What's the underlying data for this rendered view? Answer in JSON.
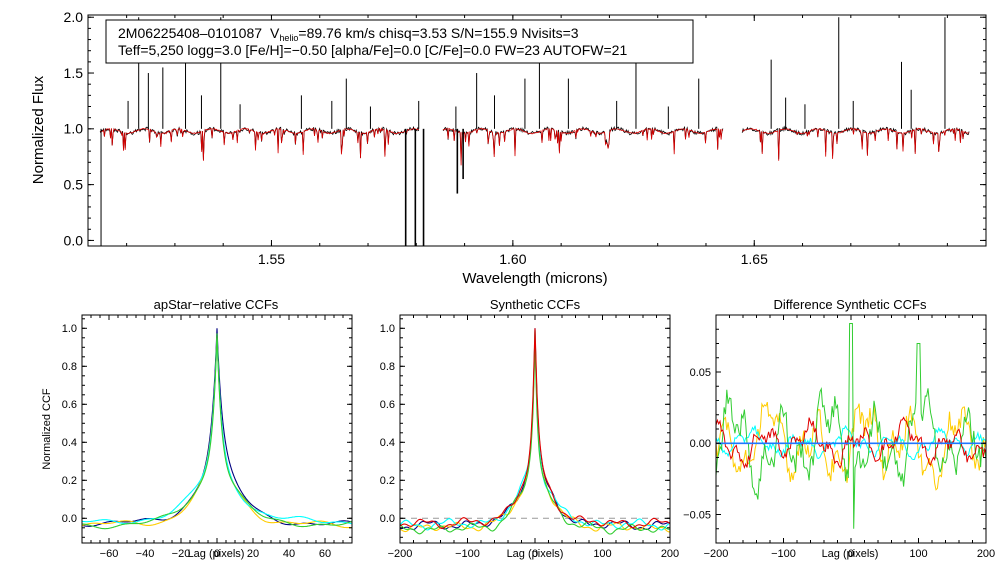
{
  "header": {
    "line1_id": "2M06225408–0101087",
    "line1_v": "V",
    "line1_vsub": "helio",
    "line1_rest": "=89.76 km/s  chisq=3.53  S/N=155.9  Nvisits=3",
    "line2": "Teff=5,250 logg=3.0 [Fe/H]=−0.50 [alpha/Fe]=0.0 [C/Fe]=0.0 FW=23 AUTOFW=21"
  },
  "chart_data": [
    {
      "type": "line",
      "name": "spectrum",
      "xlabel": "Wavelength (microns)",
      "ylabel": "Normalized Flux",
      "xlim": [
        1.512,
        1.698
      ],
      "ylim": [
        -0.05,
        2.02
      ],
      "xticks": [
        1.55,
        1.6,
        1.65
      ],
      "xtick_labels": [
        "1.55",
        "1.60",
        "1.65"
      ],
      "yticks": [
        0.0,
        0.5,
        1.0,
        1.5,
        2.0
      ],
      "ytick_labels": [
        "0.0",
        "0.5",
        "1.0",
        "1.5",
        "2.0"
      ],
      "chips": [
        [
          1.5145,
          1.5805
        ],
        [
          1.5855,
          1.6435
        ],
        [
          1.6475,
          1.6945
        ]
      ],
      "colors": {
        "observed": "#000000",
        "model": "#d40000"
      },
      "emission_lines": [
        [
          1.5147,
          -0.05
        ],
        [
          1.5203,
          1.25
        ],
        [
          1.5225,
          2.0
        ],
        [
          1.5245,
          1.5
        ],
        [
          1.5275,
          1.55
        ],
        [
          1.5322,
          1.65
        ],
        [
          1.5355,
          1.3
        ],
        [
          1.5395,
          2.0
        ],
        [
          1.5435,
          1.22
        ],
        [
          1.5562,
          1.3
        ],
        [
          1.5625,
          1.25
        ],
        [
          1.5655,
          1.45
        ],
        [
          1.5705,
          1.2
        ],
        [
          1.5805,
          1.25
        ],
        [
          1.5882,
          1.2
        ],
        [
          1.5925,
          1.5
        ],
        [
          1.5962,
          1.3
        ],
        [
          1.6025,
          1.45
        ],
        [
          1.6055,
          1.75
        ],
        [
          1.6115,
          1.45
        ],
        [
          1.6215,
          1.25
        ],
        [
          1.6255,
          1.65
        ],
        [
          1.6322,
          1.2
        ],
        [
          1.6385,
          1.45
        ],
        [
          1.6535,
          1.62
        ],
        [
          1.6565,
          1.28
        ],
        [
          1.6605,
          1.22
        ],
        [
          1.6675,
          2.0
        ],
        [
          1.6705,
          1.25
        ],
        [
          1.6805,
          1.6
        ],
        [
          1.6825,
          1.35
        ],
        [
          1.6895,
          2.0
        ]
      ],
      "absorption_lines": [
        [
          1.5778,
          -0.05
        ],
        [
          1.5798,
          -0.05
        ],
        [
          1.5815,
          -0.05
        ],
        [
          1.5885,
          0.42
        ],
        [
          1.5897,
          0.55
        ]
      ]
    },
    {
      "type": "line",
      "title": "apStar−relative CCFs",
      "xlabel": "Lag (pixels)",
      "ylabel": "Normalized CCF",
      "xlim": [
        -75,
        75
      ],
      "ylim": [
        -0.13,
        1.07
      ],
      "xticks": [
        -60,
        -40,
        -20,
        0,
        20,
        40,
        60
      ],
      "xtick_labels": [
        "−60",
        "−40",
        "−20",
        "0",
        "20",
        "40",
        "60"
      ],
      "yticks": [
        0.0,
        0.2,
        0.4,
        0.6,
        0.8,
        1.0
      ],
      "ytick_labels": [
        "0.0",
        "0.2",
        "0.4",
        "0.6",
        "0.8",
        "1.0"
      ],
      "peak": 0,
      "series": [
        {
          "color": "#000080",
          "height": 1.0,
          "width": 3.2,
          "tail": 0.0
        },
        {
          "color": "#ffcc00",
          "height": 0.96,
          "width": 2.8,
          "tail": -0.01
        },
        {
          "color": "#00ffff",
          "height": 0.95,
          "width": 2.7,
          "tail": 0.01
        },
        {
          "color": "#32cd32",
          "height": 0.99,
          "width": 2.6,
          "tail": -0.005
        }
      ]
    },
    {
      "type": "line",
      "title": "Synthetic CCFs",
      "xlabel": "Lag (pixels)",
      "ylabel": "",
      "xlim": [
        -200,
        200
      ],
      "ylim": [
        -0.13,
        1.07
      ],
      "xticks": [
        -200,
        -100,
        0,
        100,
        200
      ],
      "xtick_labels": [
        "−200",
        "−100",
        "0",
        "100",
        "200"
      ],
      "yticks": [
        0.0,
        0.2,
        0.4,
        0.6,
        0.8,
        1.0
      ],
      "ytick_labels": [
        "0.0",
        "0.2",
        "0.4",
        "0.6",
        "0.8",
        "1.0"
      ],
      "zero_line": 0.0,
      "series": [
        {
          "color": "#000080",
          "height": 1.0,
          "width": 4.5,
          "tail": 0.0
        },
        {
          "color": "#ffcc00",
          "height": 0.99,
          "width": 4.3,
          "tail": -0.01
        },
        {
          "color": "#00ffff",
          "height": 0.99,
          "width": 4.4,
          "tail": 0.005
        },
        {
          "color": "#32cd32",
          "height": 0.98,
          "width": 4.2,
          "tail": -0.02
        },
        {
          "color": "#e00000",
          "height": 1.0,
          "width": 4.6,
          "tail": 0.01
        }
      ]
    },
    {
      "type": "line",
      "title": "Difference Synthetic CCFs",
      "xlabel": "Lag (pixels)",
      "ylabel": "",
      "xlim": [
        -200,
        200
      ],
      "ylim": [
        -0.07,
        0.09
      ],
      "xticks": [
        -200,
        -100,
        0,
        100,
        200
      ],
      "xtick_labels": [
        "−200",
        "−100",
        "0",
        "100",
        "200"
      ],
      "yticks": [
        -0.05,
        0.0,
        0.05
      ],
      "ytick_labels": [
        "−0.05",
        "0.00",
        "0.05"
      ],
      "zero_line": 0.0,
      "series": [
        {
          "color": "#ffcc00",
          "amplitude": 0.03
        },
        {
          "color": "#00ffff",
          "amplitude": 0.01
        },
        {
          "color": "#32cd32",
          "amplitude": 0.035
        },
        {
          "color": "#e00000",
          "amplitude": 0.015
        },
        {
          "color": "#1f77ff",
          "amplitude": 0.0
        }
      ]
    }
  ]
}
